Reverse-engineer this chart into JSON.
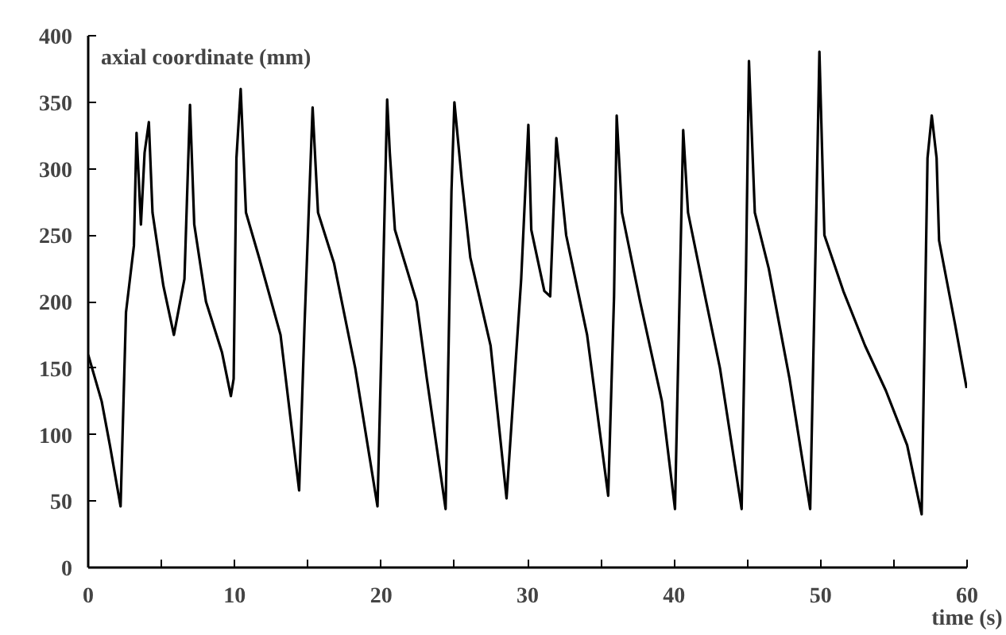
{
  "chart_data": {
    "type": "line",
    "xlabel": "time (s)",
    "ylabel": "axial coordinate (mm)",
    "xlim": [
      0,
      60
    ],
    "ylim": [
      0,
      400
    ],
    "xticks": [
      0,
      {
        "value": 5,
        "label": null
      },
      10,
      {
        "value": 15,
        "label": null
      },
      20,
      {
        "value": 25,
        "label": null
      },
      30,
      {
        "value": 35,
        "label": null
      },
      40,
      {
        "value": 45,
        "label": null
      },
      50,
      {
        "value": 55,
        "label": null
      },
      60
    ],
    "yticks": [
      0,
      50,
      100,
      150,
      200,
      250,
      300,
      350,
      400
    ],
    "grid": false,
    "marker": "none",
    "line_style": "solid",
    "series": [
      {
        "color": "#000000",
        "x": [
          0.0,
          0.92,
          1.48,
          2.21,
          2.58,
          3.12,
          3.3,
          3.6,
          3.85,
          4.14,
          4.39,
          5.13,
          5.85,
          6.57,
          6.95,
          7.24,
          8.04,
          9.13,
          9.74,
          9.93,
          10.12,
          10.41,
          10.77,
          11.67,
          13.13,
          14.4,
          14.77,
          15.32,
          15.69,
          16.78,
          18.23,
          19.75,
          20.04,
          20.41,
          20.59,
          20.94,
          22.42,
          23.12,
          24.4,
          24.8,
          25.0,
          25.5,
          26.09,
          27.47,
          28.56,
          29.56,
          30.05,
          30.25,
          31.14,
          31.54,
          31.96,
          32.63,
          34.06,
          35.5,
          35.9,
          36.08,
          36.44,
          37.68,
          39.17,
          40.06,
          40.62,
          40.95,
          42.04,
          43.13,
          44.61,
          44.91,
          45.11,
          45.51,
          46.46,
          47.88,
          49.29,
          49.67,
          49.92,
          50.26,
          51.55,
          53.03,
          54.46,
          55.91,
          56.9,
          57.3,
          57.59,
          57.92,
          58.09,
          59.18,
          59.97
        ],
        "values": [
          160,
          125,
          92,
          46,
          192,
          242,
          327,
          258,
          312,
          335,
          267,
          212,
          175,
          217,
          348,
          258,
          200,
          162,
          129,
          142,
          308,
          360,
          267,
          233,
          175,
          58,
          183,
          346,
          267,
          229,
          150,
          46,
          175,
          352,
          312,
          254,
          200,
          142,
          44,
          283,
          350,
          292,
          233,
          167,
          52,
          217,
          333,
          254,
          208,
          204,
          323,
          250,
          175,
          54,
          204,
          340,
          267,
          200,
          125,
          44,
          329,
          267,
          208,
          150,
          44,
          225,
          381,
          267,
          225,
          142,
          44,
          246,
          388,
          250,
          208,
          167,
          133,
          92,
          40,
          308,
          340,
          308,
          246,
          183,
          135
        ]
      }
    ]
  }
}
